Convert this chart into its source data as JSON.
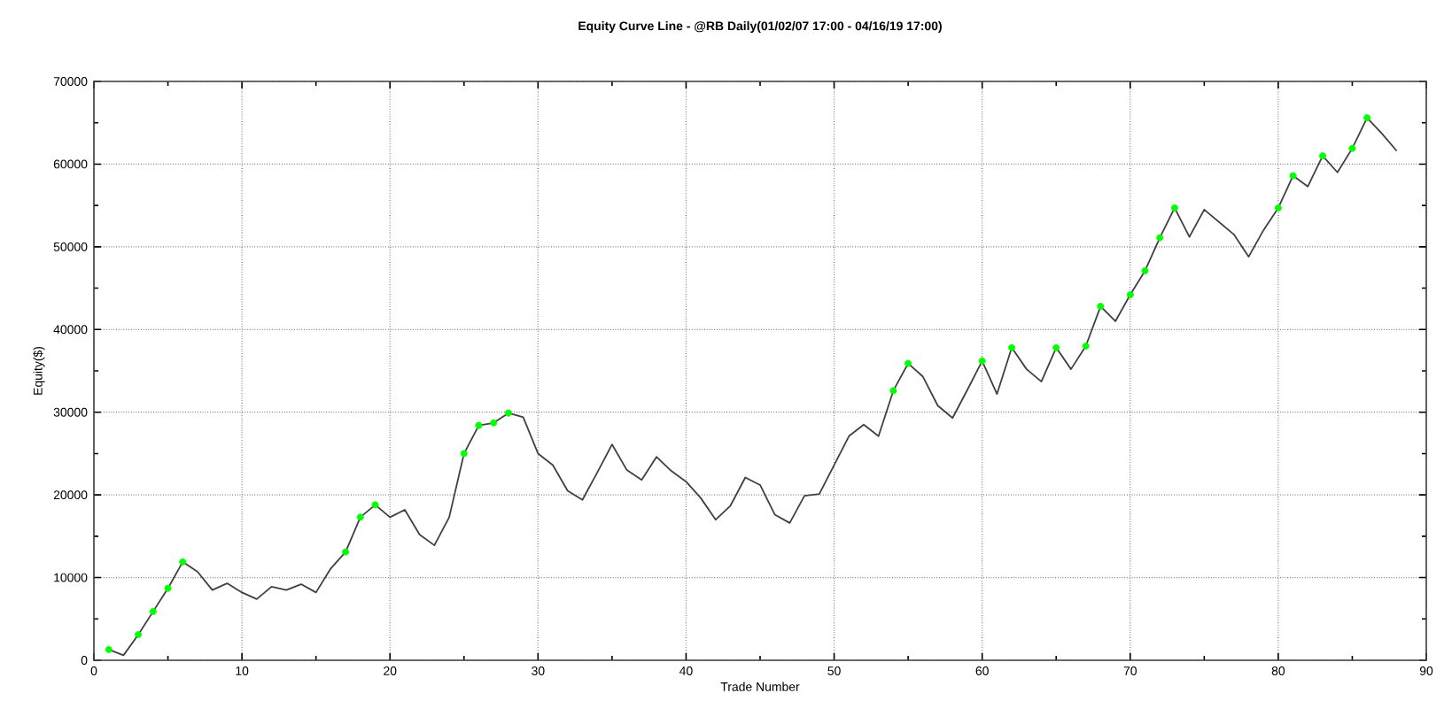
{
  "chart_data": {
    "type": "line",
    "title": "Equity Curve Line - @RB Daily(01/02/07 17:00 - 04/16/19 17:00)",
    "xlabel": "Trade Number",
    "ylabel": "Equity($)",
    "x": [
      1,
      2,
      3,
      4,
      5,
      6,
      7,
      8,
      9,
      10,
      11,
      12,
      13,
      14,
      15,
      16,
      17,
      18,
      19,
      20,
      21,
      22,
      23,
      24,
      25,
      26,
      27,
      28,
      29,
      30,
      31,
      32,
      33,
      34,
      35,
      36,
      37,
      38,
      39,
      40,
      41,
      42,
      43,
      44,
      45,
      46,
      47,
      48,
      49,
      50,
      51,
      52,
      53,
      54,
      55,
      56,
      57,
      58,
      59,
      60,
      61,
      62,
      63,
      64,
      65,
      66,
      67,
      68,
      69,
      70,
      71,
      72,
      73,
      74,
      75,
      76,
      77,
      78,
      79,
      80,
      81,
      82,
      83,
      84,
      85,
      86,
      87,
      88
    ],
    "series": [
      {
        "color": "#404040",
        "marker": "none",
        "line_style": "solid",
        "values": [
          1300,
          600,
          3100,
          5900,
          8700,
          11900,
          10700,
          8500,
          9300,
          8200,
          7400,
          8900,
          8500,
          9200,
          8200,
          11100,
          13100,
          17300,
          18800,
          17300,
          18200,
          15200,
          13900,
          17300,
          25000,
          28400,
          28700,
          29900,
          29400,
          25000,
          23600,
          20500,
          19400,
          22700,
          26100,
          23000,
          21800,
          24600,
          22900,
          21600,
          19600,
          17000,
          18700,
          22100,
          21200,
          17600,
          16600,
          19900,
          20100,
          23600,
          27100,
          28500,
          27100,
          32600,
          35900,
          34300,
          30800,
          29300,
          32700,
          36200,
          32200,
          37800,
          35200,
          33700,
          37800,
          35200,
          38000,
          42800,
          41000,
          44200,
          47100,
          51100,
          54700,
          51200,
          54500,
          53000,
          51500,
          48800,
          52000,
          54700,
          58600,
          57300,
          61000,
          59000,
          61900,
          65600,
          63700,
          61600
        ]
      },
      {
        "type": "scatter",
        "color": "#00ff00",
        "marker": "circle",
        "x": [
          1,
          3,
          4,
          5,
          6,
          17,
          18,
          19,
          25,
          26,
          27,
          28,
          54,
          55,
          60,
          62,
          65,
          67,
          68,
          70,
          71,
          72,
          73,
          80,
          81,
          83,
          85,
          86
        ],
        "values": [
          1300,
          3100,
          5900,
          8700,
          11900,
          13100,
          17300,
          18800,
          25000,
          28400,
          28700,
          29900,
          32600,
          35900,
          36200,
          37800,
          37800,
          38000,
          42800,
          44200,
          47100,
          51100,
          54700,
          54700,
          58600,
          61000,
          61900,
          65600
        ]
      }
    ],
    "xlim": [
      0,
      90
    ],
    "xticks": [
      0,
      10,
      20,
      30,
      40,
      50,
      60,
      70,
      80,
      90
    ],
    "ylim": [
      0,
      70000
    ],
    "yticks": [
      0,
      10000,
      20000,
      30000,
      40000,
      50000,
      60000,
      70000
    ],
    "grid": true
  }
}
